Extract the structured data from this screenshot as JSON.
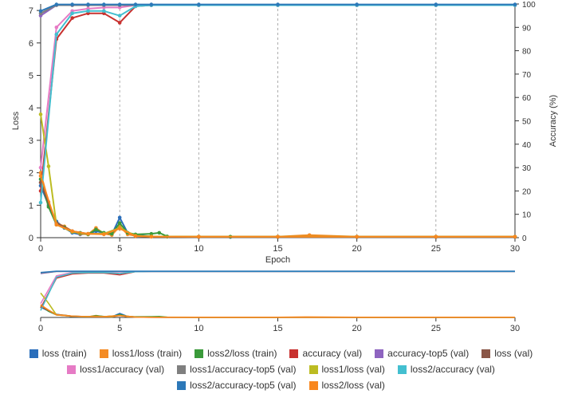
{
  "chart_data": [
    {
      "type": "line",
      "title": "",
      "xlabel": "Epoch",
      "ylabel": "Loss",
      "y2label": "Accuracy (%)",
      "xlim": [
        0,
        30
      ],
      "ylim": [
        0,
        7.2
      ],
      "y2lim": [
        0,
        100
      ],
      "x_ticks": [
        "0",
        "5",
        "10",
        "15",
        "20",
        "25",
        "30"
      ],
      "y_ticks": [
        "0",
        "1",
        "2",
        "3",
        "4",
        "5",
        "6",
        "7"
      ],
      "y2_ticks": [
        "0",
        "10",
        "20",
        "30",
        "40",
        "50",
        "60",
        "70",
        "80",
        "90",
        "100"
      ],
      "grid": "vertical dashed lines at each labelled epoch",
      "legend_position": "bottom",
      "series": [
        {
          "name": "loss (train)",
          "axis": "loss",
          "color": "#2a6ebb",
          "x": [
            0,
            0.5,
            1,
            1.5,
            2,
            2.5,
            3,
            3.5,
            4,
            4.5,
            5,
            5.5,
            6,
            7,
            8,
            10,
            12,
            15,
            20,
            25,
            30
          ],
          "values": [
            1.6,
            1.0,
            0.5,
            0.3,
            0.15,
            0.1,
            0.12,
            0.2,
            0.15,
            0.1,
            0.62,
            0.15,
            0.08,
            0.04,
            0.03,
            0.02,
            0.02,
            0.02,
            0.02,
            0.02,
            0.02
          ]
        },
        {
          "name": "loss1/loss (train)",
          "axis": "loss",
          "color": "#f48b24",
          "x": [
            0,
            0.5,
            1,
            1.5,
            2,
            2.5,
            3,
            3.5,
            4,
            4.5,
            5,
            5.5,
            6,
            7,
            8,
            10,
            12,
            15,
            17,
            20,
            25,
            30
          ],
          "values": [
            2.0,
            1.1,
            0.45,
            0.35,
            0.2,
            0.12,
            0.1,
            0.3,
            0.12,
            0.08,
            0.35,
            0.1,
            0.06,
            0.04,
            0.03,
            0.03,
            0.03,
            0.03,
            0.08,
            0.03,
            0.03,
            0.03
          ]
        },
        {
          "name": "loss2/loss (train)",
          "axis": "loss",
          "color": "#3a9a3a",
          "x": [
            0,
            0.5,
            1,
            1.5,
            2,
            2.5,
            3,
            3.5,
            4,
            4.5,
            5,
            5.5,
            6,
            7,
            7.5,
            8,
            10,
            12,
            15,
            20,
            25,
            30
          ],
          "values": [
            1.8,
            0.95,
            0.4,
            0.32,
            0.18,
            0.15,
            0.1,
            0.25,
            0.15,
            0.12,
            0.45,
            0.15,
            0.1,
            0.12,
            0.15,
            0.04,
            0.03,
            0.03,
            0.03,
            0.03,
            0.03,
            0.03
          ]
        },
        {
          "name": "accuracy (val)",
          "axis": "accuracy",
          "color": "#c8312f",
          "x": [
            0,
            1,
            2,
            3,
            4,
            5,
            6,
            7,
            10,
            15,
            20,
            25,
            30
          ],
          "values": [
            20,
            85,
            94,
            96,
            96,
            92,
            99,
            99.5,
            99.5,
            99.5,
            99.5,
            99.5,
            99.5
          ]
        },
        {
          "name": "accuracy-top5 (val)",
          "axis": "accuracy",
          "color": "#8e64c0",
          "x": [
            0,
            1,
            2,
            3,
            4,
            5,
            6,
            7,
            10,
            15,
            20,
            25,
            30
          ],
          "values": [
            95,
            99.5,
            99.5,
            99.5,
            99.5,
            99.5,
            99.5,
            99.5,
            99.5,
            99.5,
            99.5,
            99.5,
            99.5
          ]
        },
        {
          "name": "loss (val)",
          "axis": "loss",
          "color": "#8a5647",
          "x": [
            0,
            1,
            2,
            3,
            4,
            5,
            6,
            7,
            10,
            15,
            20,
            25,
            30
          ],
          "values": [
            1.7,
            0.45,
            0.2,
            0.12,
            0.12,
            0.3,
            0.05,
            0.03,
            0.02,
            0.02,
            0.02,
            0.02,
            0.02
          ]
        },
        {
          "name": "loss1/accuracy (val)",
          "axis": "accuracy",
          "color": "#e67bc5",
          "x": [
            0,
            1,
            2,
            3,
            4,
            5,
            6,
            7,
            10,
            15,
            20,
            25,
            30
          ],
          "values": [
            30,
            90,
            97,
            98,
            98.5,
            98.5,
            99.5,
            99.5,
            99.5,
            99.5,
            99.5,
            99.5,
            99.5
          ]
        },
        {
          "name": "loss1/accuracy-top5 (val)",
          "axis": "accuracy",
          "color": "#7f7f7f",
          "x": [
            0,
            1,
            2,
            3,
            4,
            5,
            6,
            7,
            10,
            15,
            20,
            25,
            30
          ],
          "values": [
            96,
            99.5,
            99.5,
            99.5,
            99.5,
            99.5,
            99.5,
            99.5,
            99.5,
            99.5,
            99.5,
            99.5,
            99.5
          ]
        },
        {
          "name": "loss1/loss (val)",
          "axis": "loss",
          "color": "#bcbc22",
          "x": [
            0,
            0.5,
            1,
            2,
            3,
            4,
            5,
            6,
            7,
            10,
            15,
            20,
            25,
            30
          ],
          "values": [
            3.8,
            2.2,
            0.4,
            0.18,
            0.12,
            0.12,
            0.3,
            0.06,
            0.04,
            0.03,
            0.03,
            0.03,
            0.03,
            0.03
          ]
        },
        {
          "name": "loss2/accuracy (val)",
          "axis": "accuracy",
          "color": "#43bfd0",
          "x": [
            0,
            1,
            2,
            3,
            4,
            5,
            6,
            7,
            10,
            15,
            20,
            25,
            30
          ],
          "values": [
            15,
            87,
            96,
            97,
            97,
            95,
            99,
            99.5,
            99.5,
            99.5,
            99.5,
            99.5,
            99.5
          ]
        },
        {
          "name": "loss2/accuracy-top5 (val)",
          "axis": "accuracy",
          "color": "#2c78b8",
          "x": [
            0,
            1,
            2,
            3,
            4,
            5,
            6,
            7,
            10,
            15,
            20,
            25,
            30
          ],
          "values": [
            97,
            99.8,
            99.8,
            99.8,
            99.8,
            99.8,
            99.8,
            99.8,
            99.8,
            99.8,
            99.8,
            99.8,
            99.8
          ]
        },
        {
          "name": "loss2/loss (val)",
          "axis": "loss",
          "color": "#f8871f",
          "x": [
            0,
            1,
            2,
            3,
            4,
            5,
            6,
            7,
            10,
            15,
            20,
            25,
            30
          ],
          "values": [
            1.9,
            0.4,
            0.2,
            0.12,
            0.1,
            0.28,
            0.05,
            0.03,
            0.03,
            0.03,
            0.03,
            0.03,
            0.03
          ]
        }
      ]
    },
    {
      "type": "line",
      "title": "",
      "xlim": [
        0,
        30
      ],
      "x_ticks": [
        "0",
        "5",
        "10",
        "15",
        "20",
        "25",
        "30"
      ],
      "note_series": "same series as main chart, overview at reduced height"
    }
  ],
  "legend": {
    "rows": [
      [
        {
          "label": "loss (train)",
          "color": "#2a6ebb"
        },
        {
          "label": "loss1/loss (train)",
          "color": "#f48b24"
        },
        {
          "label": "loss2/loss (train)",
          "color": "#3a9a3a"
        },
        {
          "label": "accuracy (val)",
          "color": "#c8312f"
        },
        {
          "label": "accuracy-top5 (val)",
          "color": "#8e64c0"
        },
        {
          "label": "loss (val)",
          "color": "#8a5647"
        }
      ],
      [
        {
          "label": "loss1/accuracy (val)",
          "color": "#e67bc5"
        },
        {
          "label": "loss1/accuracy-top5 (val)",
          "color": "#7f7f7f"
        },
        {
          "label": "loss1/loss (val)",
          "color": "#bcbc22"
        },
        {
          "label": "loss2/accuracy (val)",
          "color": "#43bfd0"
        }
      ],
      [
        {
          "label": "loss2/accuracy-top5 (val)",
          "color": "#2c78b8"
        },
        {
          "label": "loss2/loss (val)",
          "color": "#f8871f"
        }
      ]
    ]
  }
}
